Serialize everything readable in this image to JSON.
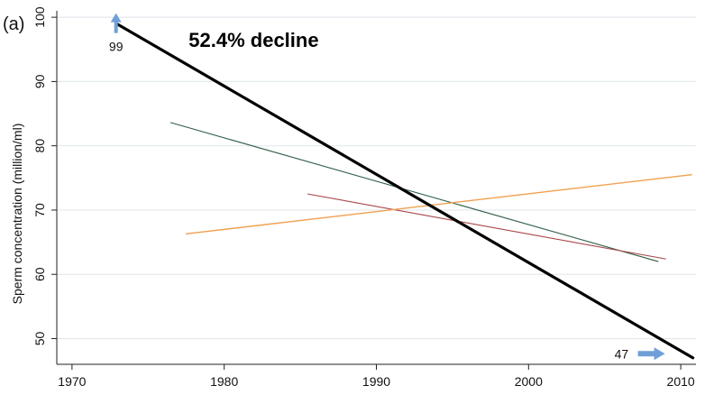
{
  "panel_label": "(a)",
  "chart_data": {
    "type": "line",
    "title": "",
    "xlabel": "",
    "ylabel": "Sperm concentration (million/ml)",
    "xlim": [
      1969,
      2011
    ],
    "ylim": [
      46,
      101
    ],
    "x_ticks": [
      1970,
      1980,
      1990,
      2000,
      2010
    ],
    "y_ticks": [
      50,
      60,
      70,
      80,
      90,
      100
    ],
    "grid": "horizontal",
    "series": [
      {
        "color": "#2f5f48",
        "width": 1.1,
        "x": [
          1976.5,
          2008.5
        ],
        "y": [
          83.6,
          62.0
        ]
      },
      {
        "color": "#a8464a",
        "width": 1.1,
        "x": [
          1985.5,
          2009.0
        ],
        "y": [
          72.5,
          62.4
        ]
      },
      {
        "color": "#f0a050",
        "width": 1.4,
        "x": [
          1977.5,
          2010.7
        ],
        "y": [
          66.3,
          75.5
        ]
      },
      {
        "color": "#000000",
        "width": 3.2,
        "x": [
          1973.0,
          2010.8
        ],
        "y": [
          98.9,
          47.0
        ]
      }
    ],
    "annotations": [
      {
        "text": "52.4% decline",
        "x": 1975.0,
        "y": 96.2,
        "bold": true
      },
      {
        "text": "99",
        "x": 1972.3,
        "y": 95.3,
        "arrow": "up"
      },
      {
        "text": "47",
        "x": 2006.0,
        "y": 47.5,
        "arrow": "right"
      }
    ],
    "background_color": "#ffffff",
    "grid_color": "#e3e9ee",
    "accent_arrow_color": "#6f9fd8"
  }
}
